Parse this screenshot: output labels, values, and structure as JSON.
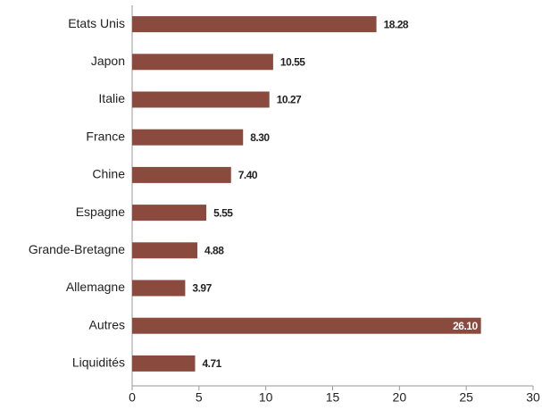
{
  "chart_data": {
    "type": "barh",
    "categories": [
      "Etats Unis",
      "Japon",
      "Italie",
      "France",
      "Chine",
      "Espagne",
      "Grande-Bretagne",
      "Allemagne",
      "Autres",
      "Liquidités"
    ],
    "values": [
      18.28,
      10.55,
      10.27,
      8.3,
      7.4,
      5.55,
      4.88,
      3.97,
      26.1,
      4.71
    ],
    "value_labels": [
      "18.28",
      "10.55",
      "10.27",
      "8.30",
      "7.40",
      "5.55",
      "4.88",
      "3.97",
      "26.10",
      "4.71"
    ],
    "color": "#8b4a3e",
    "xlim": [
      0,
      30
    ],
    "xticks": [
      0,
      5,
      10,
      15,
      20,
      25,
      30
    ]
  }
}
